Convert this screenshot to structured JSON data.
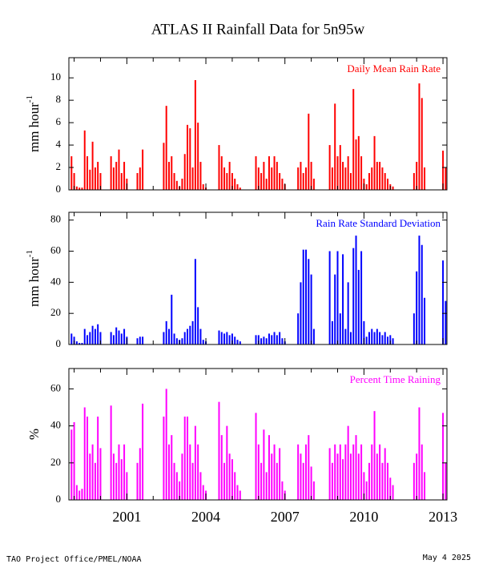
{
  "title": "ATLAS II Rainfall Data for 5n95w",
  "footer_left": "TAO Project Office/PMEL/NOAA",
  "footer_right": "May  4 2025",
  "chart_data": [
    {
      "type": "bar",
      "label": "Daily Mean Rain Rate",
      "y_label": "mm hour",
      "y_label_exponent": "-1",
      "color": "#ff0000",
      "xlim": [
        1998.8,
        2013.15
      ],
      "xticks": [
        2001,
        2004,
        2007,
        2010,
        2013
      ],
      "xminor": [
        1999,
        2000,
        2002,
        2003,
        2005,
        2006,
        2008,
        2009,
        2011,
        2012
      ],
      "ylim": [
        0,
        11.8
      ],
      "yticks": [
        0,
        2,
        4,
        6,
        8,
        10
      ],
      "x": [
        1998.9,
        1999.0,
        1999.1,
        1999.2,
        1999.3,
        1999.4,
        1999.5,
        1999.6,
        1999.7,
        1999.8,
        1999.9,
        2000.0,
        2000.4,
        2000.5,
        2000.6,
        2000.7,
        2000.8,
        2000.9,
        2001.0,
        2001.4,
        2001.5,
        2001.6,
        2002.4,
        2002.5,
        2002.6,
        2002.7,
        2002.8,
        2002.9,
        2003.0,
        2003.1,
        2003.2,
        2003.3,
        2003.4,
        2003.5,
        2003.6,
        2003.7,
        2003.8,
        2003.9,
        2004.0,
        2004.5,
        2004.6,
        2004.7,
        2004.8,
        2004.9,
        2005.0,
        2005.1,
        2005.2,
        2005.3,
        2005.9,
        2006.0,
        2006.1,
        2006.2,
        2006.3,
        2006.4,
        2006.5,
        2006.6,
        2006.7,
        2006.8,
        2006.9,
        2007.0,
        2007.5,
        2007.6,
        2007.7,
        2007.8,
        2007.9,
        2008.0,
        2008.1,
        2008.7,
        2008.8,
        2008.9,
        2009.0,
        2009.1,
        2009.2,
        2009.3,
        2009.4,
        2009.5,
        2009.6,
        2009.7,
        2009.8,
        2009.9,
        2010.0,
        2010.1,
        2010.2,
        2010.3,
        2010.4,
        2010.5,
        2010.6,
        2010.7,
        2010.8,
        2010.9,
        2011.0,
        2011.1,
        2011.9,
        2012.0,
        2012.1,
        2012.2,
        2012.3,
        2013.0,
        2013.1
      ],
      "values": [
        3.0,
        1.5,
        0.3,
        0.2,
        0.2,
        5.3,
        3.0,
        1.8,
        4.3,
        2.0,
        2.5,
        1.5,
        3.0,
        2.0,
        2.5,
        3.6,
        1.5,
        2.5,
        1.0,
        1.5,
        2.0,
        3.6,
        4.2,
        7.5,
        2.5,
        3.0,
        1.5,
        0.8,
        0.3,
        1.0,
        3.2,
        5.8,
        5.5,
        2.0,
        9.8,
        6.0,
        2.5,
        0.5,
        0.2,
        4.0,
        3.0,
        2.0,
        1.5,
        2.5,
        1.5,
        1.0,
        0.5,
        0.2,
        3.0,
        2.0,
        1.5,
        2.5,
        1.0,
        3.0,
        2.0,
        3.0,
        2.5,
        1.5,
        1.0,
        0.5,
        2.0,
        2.5,
        1.5,
        2.0,
        6.8,
        2.5,
        1.0,
        4.0,
        2.0,
        7.7,
        3.0,
        4.0,
        2.5,
        2.0,
        3.0,
        1.5,
        9.0,
        4.5,
        4.8,
        3.0,
        1.0,
        0.5,
        1.5,
        2.0,
        4.8,
        2.5,
        2.5,
        2.0,
        1.5,
        1.0,
        0.5,
        0.3,
        1.5,
        2.5,
        9.5,
        8.2,
        2.0,
        3.5,
        2.0
      ]
    },
    {
      "type": "bar",
      "label": "Rain Rate Standard Deviation",
      "y_label": "mm hour",
      "y_label_exponent": "-1",
      "color": "#0000ff",
      "xlim": [
        1998.8,
        2013.15
      ],
      "xticks": [
        2001,
        2004,
        2007,
        2010,
        2013
      ],
      "xminor": [
        1999,
        2000,
        2002,
        2003,
        2005,
        2006,
        2008,
        2009,
        2011,
        2012
      ],
      "ylim": [
        0,
        85
      ],
      "yticks": [
        0,
        20,
        40,
        60,
        80
      ],
      "x": [
        1998.9,
        1999.0,
        1999.1,
        1999.2,
        1999.3,
        1999.4,
        1999.5,
        1999.6,
        1999.7,
        1999.8,
        1999.9,
        2000.0,
        2000.4,
        2000.5,
        2000.6,
        2000.7,
        2000.8,
        2000.9,
        2001.0,
        2001.4,
        2001.5,
        2001.6,
        2002.4,
        2002.5,
        2002.6,
        2002.7,
        2002.8,
        2002.9,
        2003.0,
        2003.1,
        2003.2,
        2003.3,
        2003.4,
        2003.5,
        2003.6,
        2003.7,
        2003.8,
        2003.9,
        2004.0,
        2004.5,
        2004.6,
        2004.7,
        2004.8,
        2004.9,
        2005.0,
        2005.1,
        2005.2,
        2005.3,
        2005.9,
        2006.0,
        2006.1,
        2006.2,
        2006.3,
        2006.4,
        2006.5,
        2006.6,
        2006.7,
        2006.8,
        2006.9,
        2007.0,
        2007.5,
        2007.6,
        2007.7,
        2007.8,
        2007.9,
        2008.0,
        2008.1,
        2008.7,
        2008.8,
        2008.9,
        2009.0,
        2009.1,
        2009.2,
        2009.3,
        2009.4,
        2009.5,
        2009.6,
        2009.7,
        2009.8,
        2009.9,
        2010.0,
        2010.1,
        2010.2,
        2010.3,
        2010.4,
        2010.5,
        2010.6,
        2010.7,
        2010.8,
        2010.9,
        2011.0,
        2011.1,
        2011.9,
        2012.0,
        2012.1,
        2012.2,
        2012.3,
        2013.0,
        2013.1
      ],
      "values": [
        7,
        5,
        2,
        1,
        1,
        10,
        6,
        8,
        12,
        10,
        13,
        8,
        8,
        6,
        11,
        9,
        7,
        10,
        5,
        4,
        5,
        5,
        8,
        15,
        10,
        32,
        7,
        4,
        3,
        4,
        8,
        10,
        12,
        15,
        55,
        24,
        10,
        3,
        2,
        9,
        8,
        7,
        8,
        6,
        7,
        5,
        3,
        2,
        6,
        6,
        4,
        5,
        4,
        7,
        6,
        8,
        6,
        8,
        4,
        2,
        20,
        40,
        61,
        61,
        55,
        45,
        10,
        60,
        15,
        45,
        60,
        20,
        58,
        10,
        40,
        8,
        62,
        70,
        48,
        60,
        15,
        5,
        8,
        10,
        8,
        10,
        8,
        6,
        8,
        5,
        6,
        4,
        20,
        47,
        70,
        64,
        30,
        54,
        28
      ]
    },
    {
      "type": "bar",
      "label": "Percent Time Raining",
      "y_label": "%",
      "color": "#ff00ff",
      "xlim": [
        1998.8,
        2013.15
      ],
      "xticks": [
        2001,
        2004,
        2007,
        2010,
        2013
      ],
      "xminor": [
        1999,
        2000,
        2002,
        2003,
        2005,
        2006,
        2008,
        2009,
        2011,
        2012
      ],
      "ylim": [
        0,
        71
      ],
      "yticks": [
        0,
        20,
        40,
        60
      ],
      "x": [
        1998.9,
        1999.0,
        1999.1,
        1999.2,
        1999.3,
        1999.4,
        1999.5,
        1999.6,
        1999.7,
        1999.8,
        1999.9,
        2000.0,
        2000.4,
        2000.5,
        2000.6,
        2000.7,
        2000.8,
        2000.9,
        2001.0,
        2001.4,
        2001.5,
        2001.6,
        2002.4,
        2002.5,
        2002.6,
        2002.7,
        2002.8,
        2002.9,
        2003.0,
        2003.1,
        2003.2,
        2003.3,
        2003.4,
        2003.5,
        2003.6,
        2003.7,
        2003.8,
        2003.9,
        2004.0,
        2004.5,
        2004.6,
        2004.7,
        2004.8,
        2004.9,
        2005.0,
        2005.1,
        2005.2,
        2005.3,
        2005.9,
        2006.0,
        2006.1,
        2006.2,
        2006.3,
        2006.4,
        2006.5,
        2006.6,
        2006.7,
        2006.8,
        2006.9,
        2007.0,
        2007.5,
        2007.6,
        2007.7,
        2007.8,
        2007.9,
        2008.0,
        2008.1,
        2008.7,
        2008.8,
        2008.9,
        2009.0,
        2009.1,
        2009.2,
        2009.3,
        2009.4,
        2009.5,
        2009.6,
        2009.7,
        2009.8,
        2009.9,
        2010.0,
        2010.1,
        2010.2,
        2010.3,
        2010.4,
        2010.5,
        2010.6,
        2010.7,
        2010.8,
        2010.9,
        2011.0,
        2011.1,
        2011.9,
        2012.0,
        2012.1,
        2012.2,
        2012.3,
        2013.0,
        2013.1
      ],
      "values": [
        38,
        42,
        8,
        5,
        6,
        50,
        45,
        25,
        30,
        20,
        45,
        28,
        51,
        25,
        20,
        30,
        22,
        30,
        15,
        20,
        28,
        52,
        45,
        60,
        30,
        35,
        20,
        15,
        10,
        25,
        45,
        45,
        30,
        20,
        40,
        30,
        15,
        8,
        5,
        53,
        35,
        20,
        40,
        25,
        22,
        15,
        8,
        5,
        47,
        30,
        20,
        38,
        15,
        35,
        25,
        30,
        20,
        28,
        10,
        5,
        30,
        25,
        20,
        30,
        35,
        18,
        10,
        28,
        20,
        30,
        25,
        30,
        22,
        30,
        40,
        25,
        30,
        35,
        25,
        30,
        15,
        10,
        20,
        30,
        48,
        25,
        30,
        20,
        28,
        20,
        12,
        8,
        20,
        25,
        50,
        30,
        15,
        47,
        20
      ]
    }
  ]
}
